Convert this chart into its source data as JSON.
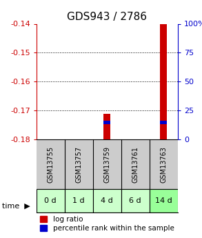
{
  "title": "GDS943 / 2786",
  "samples": [
    "GSM13755",
    "GSM13757",
    "GSM13759",
    "GSM13761",
    "GSM13763"
  ],
  "time_labels": [
    "0 d",
    "1 d",
    "4 d",
    "6 d",
    "14 d"
  ],
  "ylim": [
    -0.18,
    -0.14
  ],
  "yticks": [
    -0.18,
    -0.17,
    -0.16,
    -0.15,
    -0.14
  ],
  "right_yticks": [
    0,
    25,
    50,
    75,
    100
  ],
  "right_ylim": [
    0,
    100
  ],
  "log_ratio": [
    null,
    null,
    -0.171,
    null,
    -0.14
  ],
  "percentile": [
    null,
    null,
    15,
    null,
    15
  ],
  "bar_width": 0.25,
  "red_color": "#cc0000",
  "blue_color": "#0000cc",
  "bg_color": "#ffffff",
  "sample_bg": "#cccccc",
  "time_bg_colors": [
    "#ccffcc",
    "#ccffcc",
    "#ccffcc",
    "#ccffcc",
    "#99ff99"
  ],
  "left_axis_color": "#cc0000",
  "right_axis_color": "#0000cc",
  "title_fontsize": 11,
  "tick_fontsize": 8,
  "label_fontsize": 8,
  "legend_fontsize": 7.5,
  "sample_fontsize": 7,
  "time_fontsize": 8,
  "right_tick_labels": [
    "0",
    "25",
    "50",
    "75",
    "100%"
  ]
}
